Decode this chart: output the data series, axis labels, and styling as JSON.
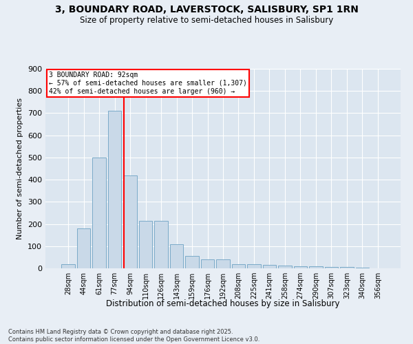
{
  "title_line1": "3, BOUNDARY ROAD, LAVERSTOCK, SALISBURY, SP1 1RN",
  "title_line2": "Size of property relative to semi-detached houses in Salisbury",
  "xlabel": "Distribution of semi-detached houses by size in Salisbury",
  "ylabel": "Number of semi-detached properties",
  "categories": [
    "28sqm",
    "44sqm",
    "61sqm",
    "77sqm",
    "94sqm",
    "110sqm",
    "126sqm",
    "143sqm",
    "159sqm",
    "176sqm",
    "192sqm",
    "208sqm",
    "225sqm",
    "241sqm",
    "258sqm",
    "274sqm",
    "290sqm",
    "307sqm",
    "323sqm",
    "340sqm",
    "356sqm"
  ],
  "values": [
    18,
    180,
    500,
    710,
    420,
    215,
    215,
    110,
    55,
    40,
    40,
    20,
    20,
    15,
    12,
    8,
    8,
    5,
    5,
    2,
    1
  ],
  "bar_color": "#c9d9e8",
  "bar_edge_color": "#7aaac8",
  "annotation_title": "3 BOUNDARY ROAD: 92sqm",
  "annotation_line2": "← 57% of semi-detached houses are smaller (1,307)",
  "annotation_line3": "42% of semi-detached houses are larger (960) →",
  "vline_color": "red",
  "vline_x": 3.6,
  "ylim": [
    0,
    900
  ],
  "yticks": [
    0,
    100,
    200,
    300,
    400,
    500,
    600,
    700,
    800,
    900
  ],
  "background_color": "#e8eef5",
  "plot_background_color": "#dce6f0",
  "footer_line1": "Contains HM Land Registry data © Crown copyright and database right 2025.",
  "footer_line2": "Contains public sector information licensed under the Open Government Licence v3.0."
}
